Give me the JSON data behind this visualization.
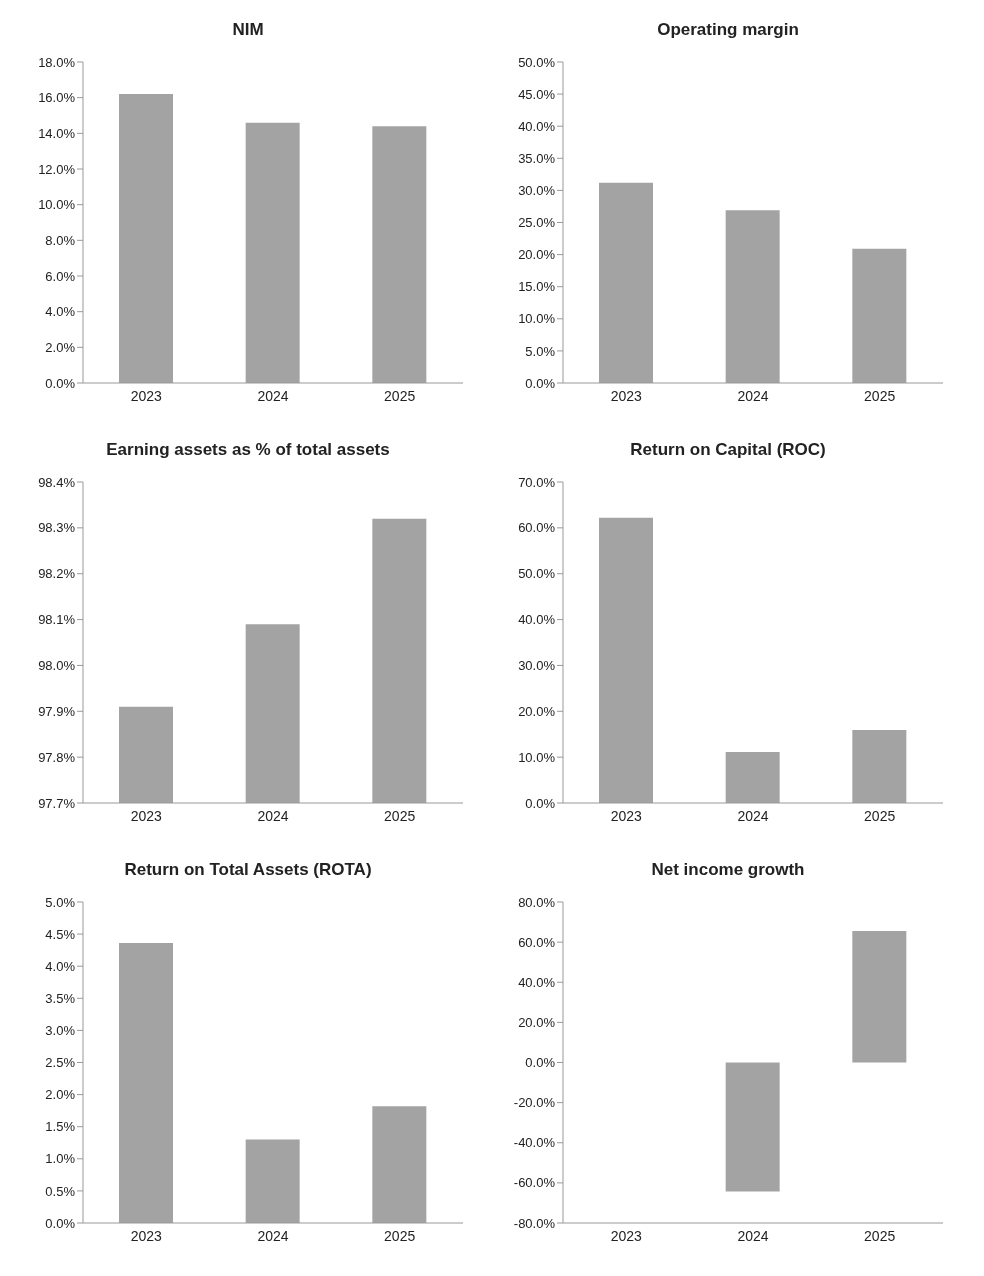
{
  "chart_data": [
    {
      "type": "bar",
      "title": "NIM",
      "categories": [
        "2023",
        "2024",
        "2025"
      ],
      "values": [
        16.2,
        14.6,
        14.4
      ],
      "color": "#a3a3a3",
      "ylim": [
        0,
        18
      ],
      "yticks": [
        {
          "value": 0,
          "label": "0.0%"
        },
        {
          "value": 2,
          "label": "2.0%"
        },
        {
          "value": 4,
          "label": "4.0%"
        },
        {
          "value": 6,
          "label": "6.0%"
        },
        {
          "value": 8,
          "label": "8.0%"
        },
        {
          "value": 10,
          "label": "10.0%"
        },
        {
          "value": 12,
          "label": "12.0%"
        },
        {
          "value": 14,
          "label": "14.0%"
        },
        {
          "value": 16,
          "label": "16.0%"
        },
        {
          "value": 18,
          "label": "18.0%"
        }
      ],
      "grid": false,
      "legend": false
    },
    {
      "type": "bar",
      "title": "Operating margin",
      "categories": [
        "2023",
        "2024",
        "2025"
      ],
      "values": [
        31.2,
        26.9,
        20.9
      ],
      "color": "#a3a3a3",
      "ylim": [
        0,
        50
      ],
      "yticks": [
        {
          "value": 0,
          "label": "0.0%"
        },
        {
          "value": 5,
          "label": "5.0%"
        },
        {
          "value": 10,
          "label": "10.0%"
        },
        {
          "value": 15,
          "label": "15.0%"
        },
        {
          "value": 20,
          "label": "20.0%"
        },
        {
          "value": 25,
          "label": "25.0%"
        },
        {
          "value": 30,
          "label": "30.0%"
        },
        {
          "value": 35,
          "label": "35.0%"
        },
        {
          "value": 40,
          "label": "40.0%"
        },
        {
          "value": 45,
          "label": "45.0%"
        },
        {
          "value": 50,
          "label": "50.0%"
        }
      ],
      "grid": false,
      "legend": false
    },
    {
      "type": "bar",
      "title": "Earning assets as % of total assets",
      "categories": [
        "2023",
        "2024",
        "2025"
      ],
      "values": [
        97.91,
        98.09,
        98.32
      ],
      "color": "#a3a3a3",
      "ylim": [
        97.7,
        98.4
      ],
      "yticks": [
        {
          "value": 97.7,
          "label": "97.7%"
        },
        {
          "value": 97.8,
          "label": "97.8%"
        },
        {
          "value": 97.9,
          "label": "97.9%"
        },
        {
          "value": 98.0,
          "label": "98.0%"
        },
        {
          "value": 98.1,
          "label": "98.1%"
        },
        {
          "value": 98.2,
          "label": "98.2%"
        },
        {
          "value": 98.3,
          "label": "98.3%"
        },
        {
          "value": 98.4,
          "label": "98.4%"
        }
      ],
      "grid": false,
      "legend": false
    },
    {
      "type": "bar",
      "title": "Return on Capital (ROC)",
      "categories": [
        "2023",
        "2024",
        "2025"
      ],
      "values": [
        62.2,
        11.1,
        15.9
      ],
      "color": "#a3a3a3",
      "ylim": [
        0,
        70
      ],
      "yticks": [
        {
          "value": 0,
          "label": "0.0%"
        },
        {
          "value": 10,
          "label": "10.0%"
        },
        {
          "value": 20,
          "label": "20.0%"
        },
        {
          "value": 30,
          "label": "30.0%"
        },
        {
          "value": 40,
          "label": "40.0%"
        },
        {
          "value": 50,
          "label": "50.0%"
        },
        {
          "value": 60,
          "label": "60.0%"
        },
        {
          "value": 70,
          "label": "70.0%"
        }
      ],
      "grid": false,
      "legend": false
    },
    {
      "type": "bar",
      "title": "Return on Total Assets (ROTA)",
      "categories": [
        "2023",
        "2024",
        "2025"
      ],
      "values": [
        4.36,
        1.3,
        1.82
      ],
      "color": "#a3a3a3",
      "ylim": [
        0,
        5
      ],
      "yticks": [
        {
          "value": 0,
          "label": "0.0%"
        },
        {
          "value": 0.5,
          "label": "0.5%"
        },
        {
          "value": 1,
          "label": "1.0%"
        },
        {
          "value": 1.5,
          "label": "1.5%"
        },
        {
          "value": 2,
          "label": "2.0%"
        },
        {
          "value": 2.5,
          "label": "2.5%"
        },
        {
          "value": 3,
          "label": "3.0%"
        },
        {
          "value": 3.5,
          "label": "3.5%"
        },
        {
          "value": 4,
          "label": "4.0%"
        },
        {
          "value": 4.5,
          "label": "4.5%"
        },
        {
          "value": 5,
          "label": "5.0%"
        }
      ],
      "grid": false,
      "legend": false
    },
    {
      "type": "bar",
      "title": "Net income growth",
      "categories": [
        "2023",
        "2024",
        "2025"
      ],
      "values": [
        null,
        -64.3,
        65.5
      ],
      "color": "#a3a3a3",
      "ylim": [
        -80,
        80
      ],
      "yticks": [
        {
          "value": -80,
          "label": "-80.0%"
        },
        {
          "value": -60,
          "label": "-60.0%"
        },
        {
          "value": -40,
          "label": "-40.0%"
        },
        {
          "value": -20,
          "label": "-20.0%"
        },
        {
          "value": 0,
          "label": "0.0%"
        },
        {
          "value": 20,
          "label": "20.0%"
        },
        {
          "value": 40,
          "label": "40.0%"
        },
        {
          "value": 60,
          "label": "60.0%"
        },
        {
          "value": 80,
          "label": "80.0%"
        }
      ],
      "grid": false,
      "legend": false
    }
  ]
}
